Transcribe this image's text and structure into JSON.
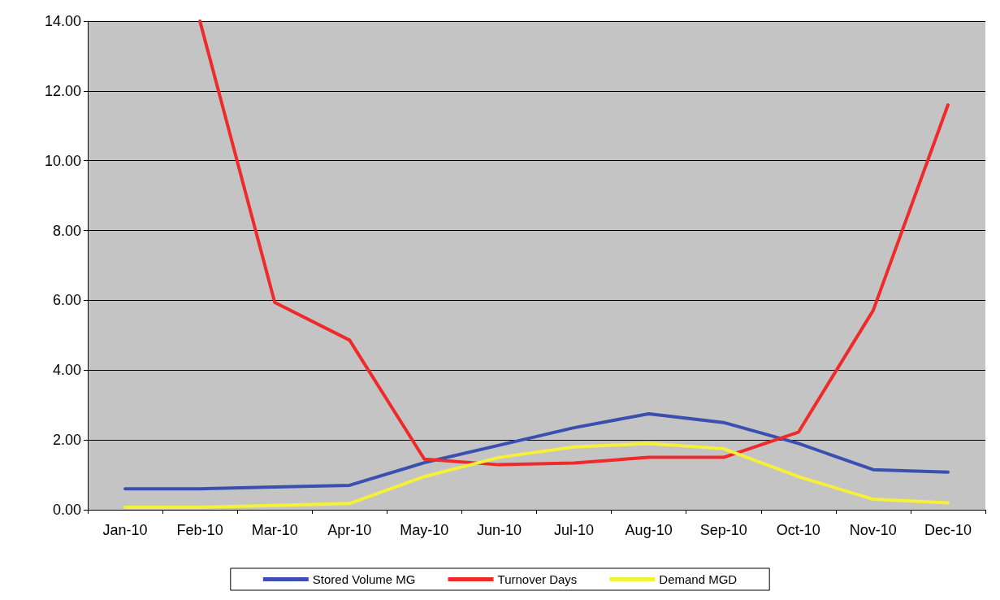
{
  "chart_data": {
    "type": "line",
    "categories": [
      "Jan-10",
      "Feb-10",
      "Mar-10",
      "Apr-10",
      "May-10",
      "Jun-10",
      "Jul-10",
      "Aug-10",
      "Sep-10",
      "Oct-10",
      "Nov-10",
      "Dec-10"
    ],
    "series": [
      {
        "name": "Stored Volume MG",
        "color": "#3a4fb0",
        "values": [
          0.6,
          0.6,
          0.65,
          0.7,
          1.35,
          1.85,
          2.35,
          2.75,
          2.5,
          1.9,
          1.15,
          1.08
        ]
      },
      {
        "name": "Turnover Days",
        "color": "#ee2a2a",
        "values": [
          null,
          14.0,
          5.94,
          4.86,
          1.45,
          1.29,
          1.34,
          1.5,
          1.5,
          2.22,
          5.71,
          11.6
        ]
      },
      {
        "name": "Demand MGD",
        "color": "#f5f03a",
        "values": [
          0.07,
          0.07,
          0.12,
          0.18,
          0.95,
          1.5,
          1.8,
          1.9,
          1.75,
          0.95,
          0.3,
          0.2
        ]
      }
    ],
    "ylim": [
      0,
      14
    ],
    "yticks": [
      {
        "value": 0,
        "label": "0.00"
      },
      {
        "value": 2,
        "label": "2.00"
      },
      {
        "value": 4,
        "label": "4.00"
      },
      {
        "value": 6,
        "label": "6.00"
      },
      {
        "value": 8,
        "label": "8.00"
      },
      {
        "value": 10,
        "label": "10.00"
      },
      {
        "value": 12,
        "label": "12.00"
      },
      {
        "value": 14,
        "label": "14.00"
      }
    ],
    "grid": "y",
    "legend": "bottom",
    "marker": "none",
    "line_style": "solid"
  }
}
